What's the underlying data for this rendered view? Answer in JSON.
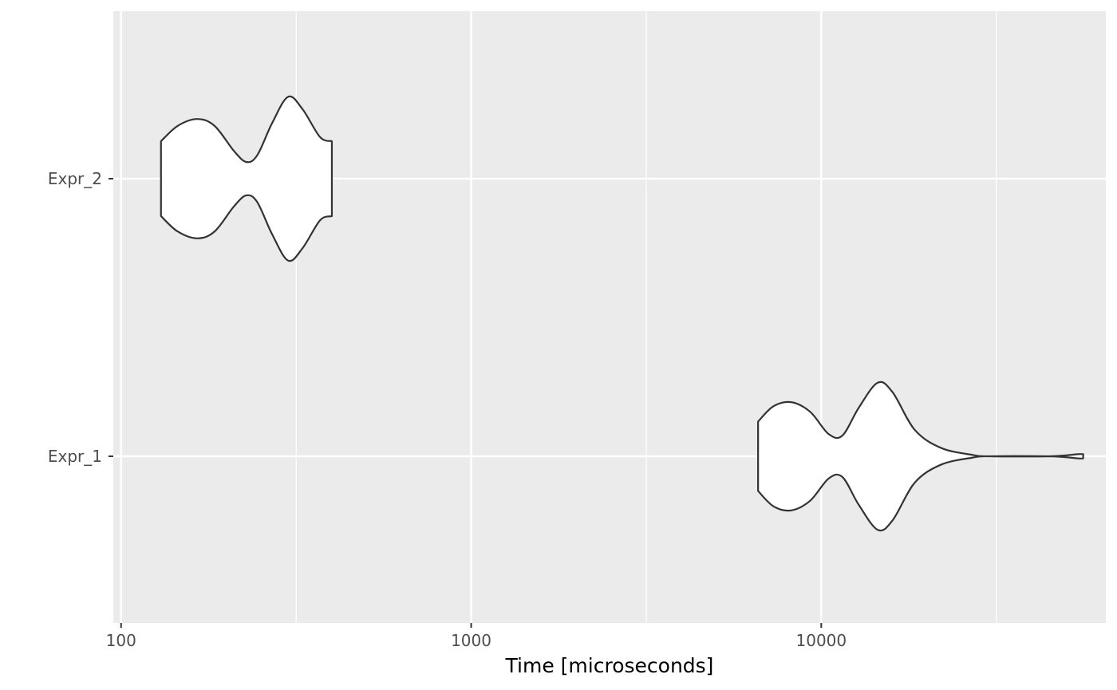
{
  "chart_data": {
    "type": "violin",
    "orientation": "horizontal",
    "title": "",
    "xlabel": "Time [microseconds]",
    "ylabel": "",
    "x_scale": "log10",
    "xlim": [
      95,
      65000
    ],
    "x_ticks": [
      {
        "value": 100,
        "label": "100"
      },
      {
        "value": 1000,
        "label": "1000"
      },
      {
        "value": 10000,
        "label": "10000"
      }
    ],
    "x_minor_ticks": [
      316.2,
      3162.3,
      31622.8
    ],
    "categories": [
      "Expr_1",
      "Expr_2"
    ],
    "grid": true,
    "panel_color": "#ebebeb",
    "grid_color": "#ffffff",
    "violin_fill": "#ffffff",
    "violin_stroke": "#333333",
    "series": [
      {
        "category": "Expr_2",
        "min": 130,
        "max": 400,
        "density": [
          {
            "x": 130,
            "w": 0.27
          },
          {
            "x": 145,
            "w": 0.38
          },
          {
            "x": 165,
            "w": 0.43
          },
          {
            "x": 185,
            "w": 0.38
          },
          {
            "x": 210,
            "w": 0.2
          },
          {
            "x": 228,
            "w": 0.12
          },
          {
            "x": 245,
            "w": 0.17
          },
          {
            "x": 270,
            "w": 0.4
          },
          {
            "x": 300,
            "w": 0.59
          },
          {
            "x": 330,
            "w": 0.5
          },
          {
            "x": 370,
            "w": 0.3
          },
          {
            "x": 400,
            "w": 0.27
          }
        ]
      },
      {
        "category": "Expr_1",
        "min": 6600,
        "max": 56000,
        "density": [
          {
            "x": 6600,
            "w": 0.25
          },
          {
            "x": 7300,
            "w": 0.36
          },
          {
            "x": 8200,
            "w": 0.39
          },
          {
            "x": 9300,
            "w": 0.32
          },
          {
            "x": 10500,
            "w": 0.16
          },
          {
            "x": 11500,
            "w": 0.15
          },
          {
            "x": 12800,
            "w": 0.35
          },
          {
            "x": 14500,
            "w": 0.53
          },
          {
            "x": 16000,
            "w": 0.46
          },
          {
            "x": 18500,
            "w": 0.19
          },
          {
            "x": 22000,
            "w": 0.06
          },
          {
            "x": 27000,
            "w": 0.01
          },
          {
            "x": 30000,
            "w": 0.0
          },
          {
            "x": 45000,
            "w": 0.0
          },
          {
            "x": 54000,
            "w": 0.015
          },
          {
            "x": 56000,
            "w": 0.015
          }
        ]
      }
    ]
  }
}
